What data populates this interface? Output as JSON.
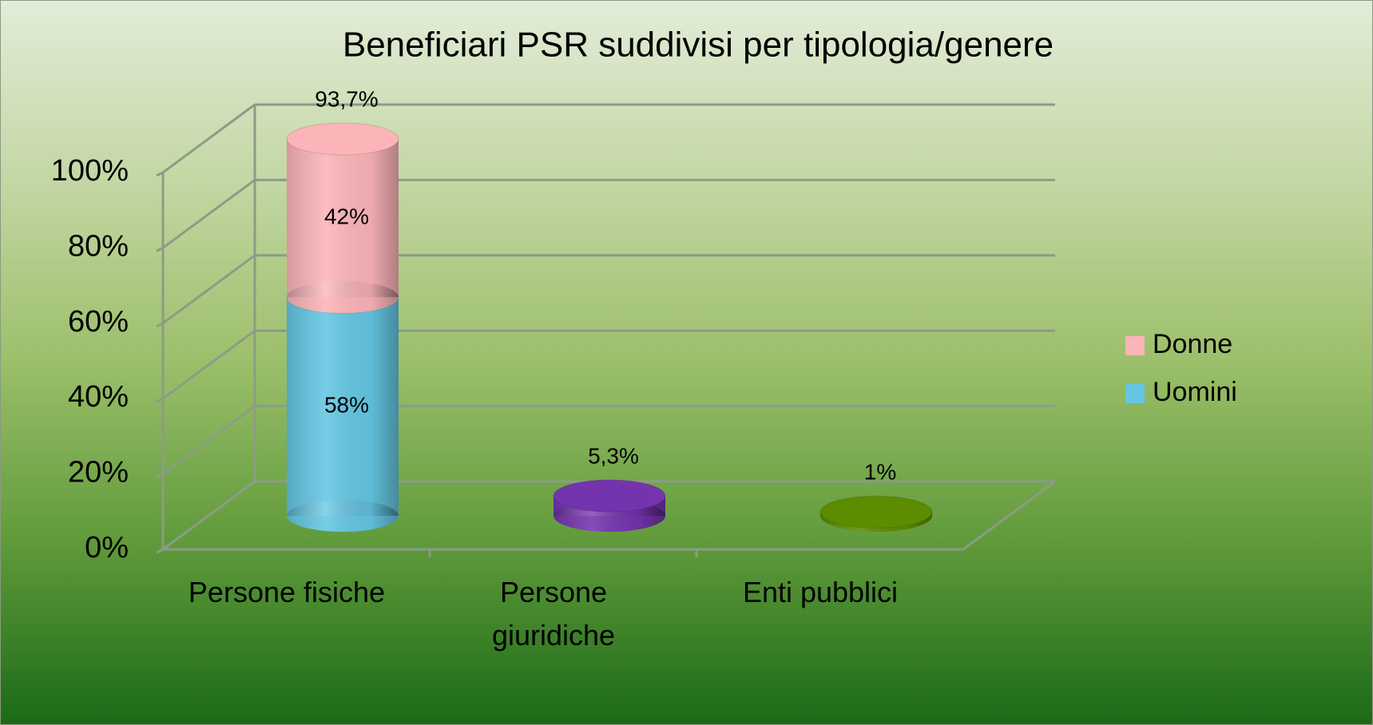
{
  "chart_data": {
    "type": "bar3d",
    "title": "Beneficiari PSR suddivisi per tipologia/genere",
    "categories": [
      "Persone fisiche",
      "Persone giuridiche",
      "Enti pubblici"
    ],
    "series": [
      {
        "name": "Donne",
        "color": "#fbb4b8",
        "values": [
          42,
          null,
          null
        ],
        "value_labels": [
          "42%",
          null,
          null
        ]
      },
      {
        "name": "Uomini",
        "color": "#64c6e2",
        "values": [
          58,
          null,
          null
        ],
        "value_labels": [
          "58%",
          null,
          null
        ]
      }
    ],
    "totals": [
      93.7,
      5.3,
      1
    ],
    "totals_labels": [
      "93,7%",
      "5,3%",
      "1%"
    ],
    "totals_colors": [
      null,
      "#7434ae",
      "#5d8c00"
    ],
    "ylim": [
      0,
      100
    ],
    "yticks": [
      {
        "value": 0,
        "label": "0%"
      },
      {
        "value": 20,
        "label": "20%"
      },
      {
        "value": 40,
        "label": "40%"
      },
      {
        "value": 60,
        "label": "60%"
      },
      {
        "value": 80,
        "label": "80%"
      },
      {
        "value": 100,
        "label": "100%"
      }
    ],
    "grid": true,
    "legend": "right"
  }
}
